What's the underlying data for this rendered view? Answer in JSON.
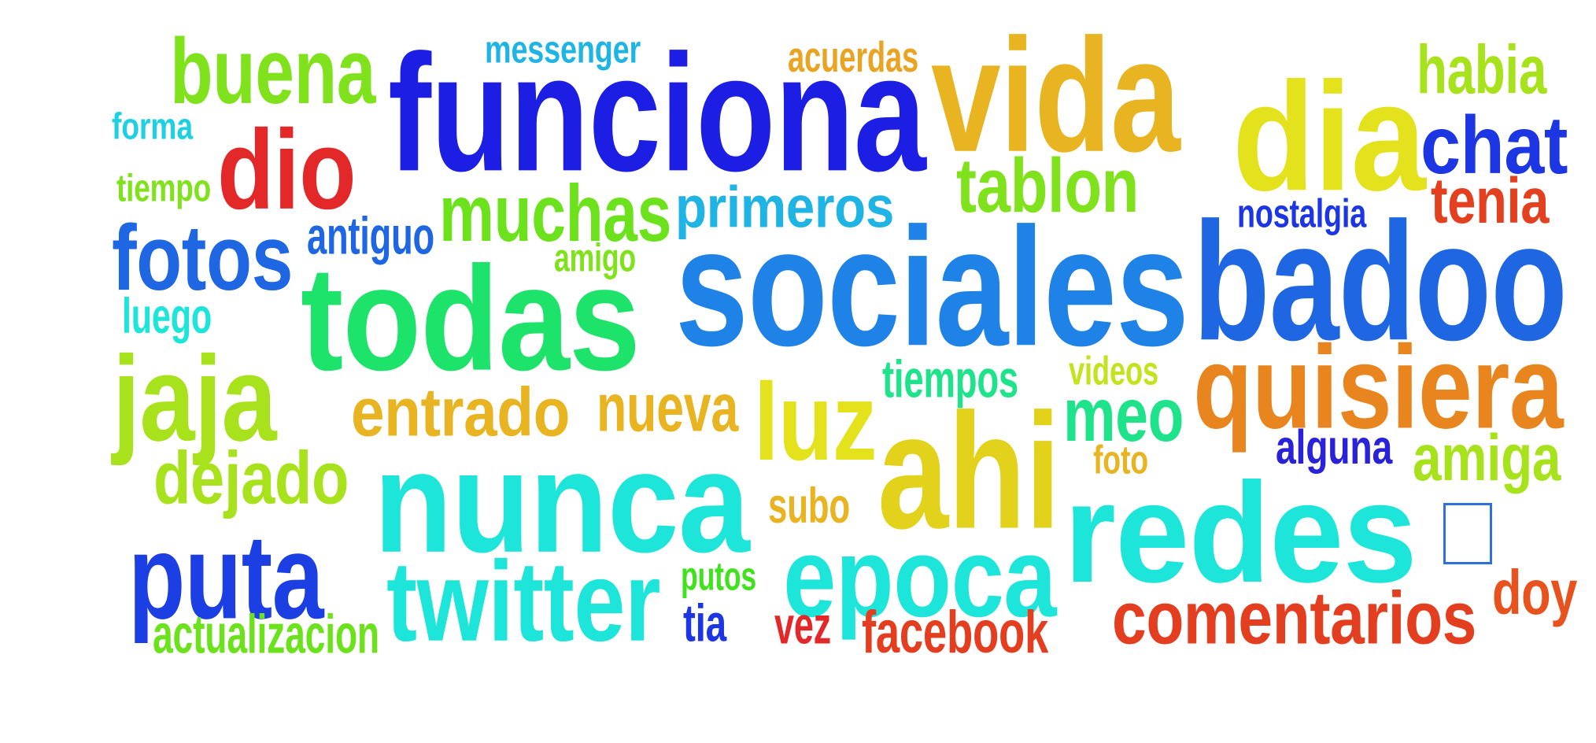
{
  "word_cloud": {
    "words": [
      {
        "text": "funciona",
        "color": "#1c1ee4"
      },
      {
        "text": "sociales",
        "color": "#1f82e6"
      },
      {
        "text": "badoo",
        "color": "#1f66e3"
      },
      {
        "text": "vida",
        "color": "#e8b422"
      },
      {
        "text": "dia",
        "color": "#e3e21c"
      },
      {
        "text": "todas",
        "color": "#1ee36a"
      },
      {
        "text": "nunca",
        "color": "#1de5d9"
      },
      {
        "text": "redes",
        "color": "#1de5d9"
      },
      {
        "text": "quisiera",
        "color": "#e8851e"
      },
      {
        "text": "ahi",
        "color": "#e3d21c"
      },
      {
        "text": "epoca",
        "color": "#1de5d9"
      },
      {
        "text": "twitter",
        "color": "#1de5d9"
      },
      {
        "text": "puta",
        "color": "#1c3fe3"
      },
      {
        "text": "jaja",
        "color": "#a8e21d"
      },
      {
        "text": "luz",
        "color": "#e3e21c"
      },
      {
        "text": "dio",
        "color": "#e3282a"
      },
      {
        "text": "fotos",
        "color": "#1f66e3"
      },
      {
        "text": "buena",
        "color": "#80e21d"
      },
      {
        "text": "chat",
        "color": "#1c36e3"
      },
      {
        "text": "comentarios",
        "color": "#e33e1f"
      },
      {
        "text": "muchas",
        "color": "#6ce21d"
      },
      {
        "text": "tablon",
        "color": "#80e21d"
      },
      {
        "text": "meo",
        "color": "#1ee38a"
      },
      {
        "text": "entrado",
        "color": "#e8b422"
      },
      {
        "text": "dejado",
        "color": "#a8e21d"
      },
      {
        "text": "nueva",
        "color": "#e8b422"
      },
      {
        "text": "primeros",
        "color": "#1fb4e3"
      },
      {
        "text": "amiga",
        "color": "#a8e21d"
      },
      {
        "text": "habia",
        "color": "#a8e21d"
      },
      {
        "text": "tenia",
        "color": "#e3401f"
      },
      {
        "text": "facebook",
        "color": "#e33e1f"
      },
      {
        "text": "doy",
        "color": "#e8521e"
      },
      {
        "text": "antiguo",
        "color": "#1f66e3"
      },
      {
        "text": "tiempos",
        "color": "#1ee38a"
      },
      {
        "text": "actualizacion",
        "color": "#6ce21d"
      },
      {
        "text": "subo",
        "color": "#e8b422"
      },
      {
        "text": "alguna",
        "color": "#2a22d9"
      },
      {
        "text": "luego",
        "color": "#1de5d9"
      },
      {
        "text": "acuerdas",
        "color": "#e8a422"
      },
      {
        "text": "messenger",
        "color": "#1fb4e3"
      },
      {
        "text": "nostalgia",
        "color": "#1c36e3"
      },
      {
        "text": "videos",
        "color": "#c4e21d"
      },
      {
        "text": "forma",
        "color": "#1fd0e3"
      },
      {
        "text": "tiempo",
        "color": "#80e21d"
      },
      {
        "text": "amigo",
        "color": "#80e21d"
      },
      {
        "text": "foto",
        "color": "#e8b422"
      },
      {
        "text": "putos",
        "color": "#3fe21d"
      },
      {
        "text": "tia",
        "color": "#1c36e3"
      },
      {
        "text": "vez",
        "color": "#e3282a"
      }
    ]
  }
}
